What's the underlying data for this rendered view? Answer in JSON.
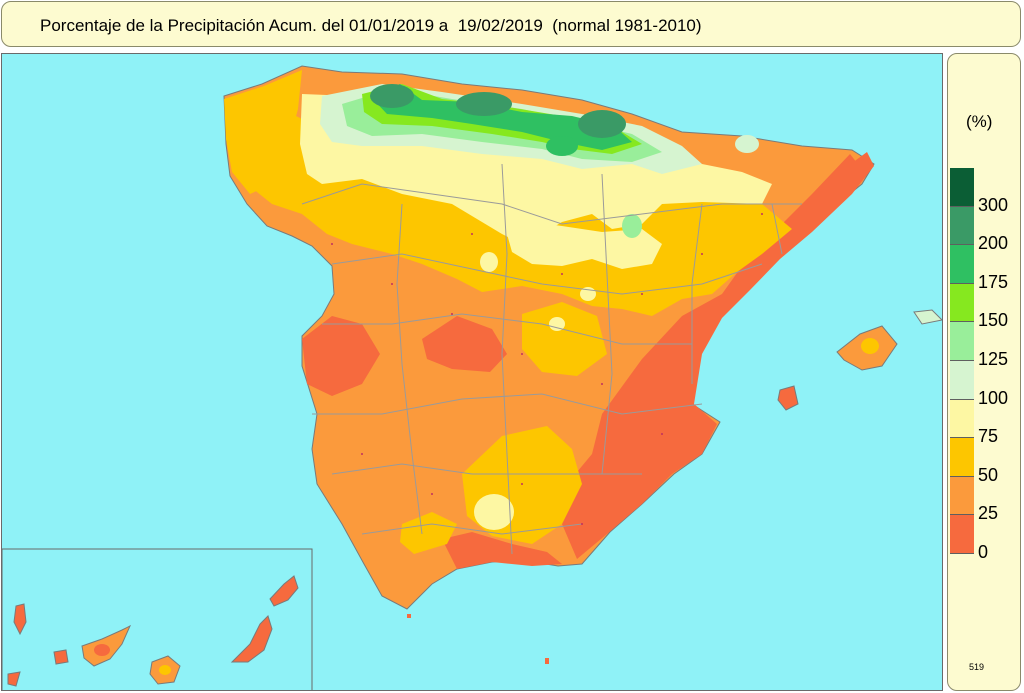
{
  "title": "Porcentaje de la Precipitación Acum. del 01/01/2019 a  19/02/2019  (normal 1981-2010)",
  "legend": {
    "unit": "(%)",
    "classes": [
      {
        "label": "300",
        "color": "#0b5e35"
      },
      {
        "label": "200",
        "color": "#3a9a66"
      },
      {
        "label": "175",
        "color": "#2fc062"
      },
      {
        "label": "150",
        "color": "#86e81f"
      },
      {
        "label": "125",
        "color": "#99ee9a"
      },
      {
        "label": "100",
        "color": "#d6f4d0"
      },
      {
        "label": "75",
        "color": "#fdf7a3"
      },
      {
        "label": "50",
        "color": "#fdc600"
      },
      {
        "label": "25",
        "color": "#fb9a3c"
      },
      {
        "label": "0",
        "color": "#f66a3e"
      }
    ]
  },
  "colors": {
    "sea": "#8ff2f7",
    "panel": "#fdfbd0",
    "borders": "#9a9a9a"
  },
  "footer": {
    "code": "519"
  }
}
